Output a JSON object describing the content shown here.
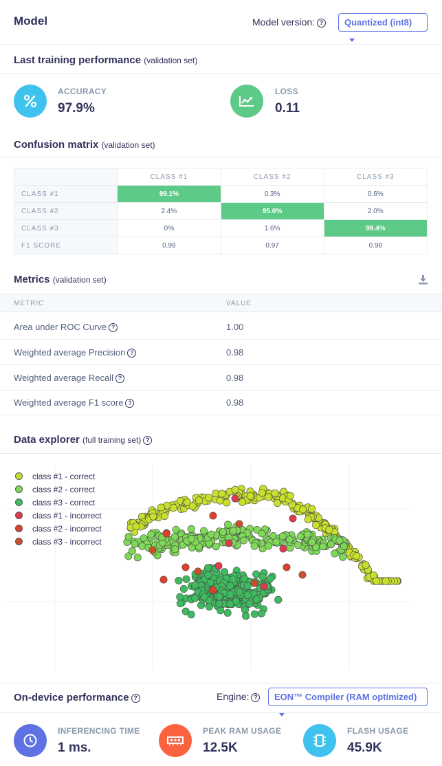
{
  "header": {
    "title": "Model",
    "model_version_label": "Model version:",
    "model_version_value": "Quantized (int8)"
  },
  "training": {
    "title": "Last training performance",
    "subtitle": "(validation set)",
    "accuracy": {
      "label": "ACCURACY",
      "value": "97.9%",
      "icon": "percent-icon",
      "color": "#3fc3ee"
    },
    "loss": {
      "label": "LOSS",
      "value": "0.11",
      "icon": "chart-icon",
      "color": "#5dca88"
    }
  },
  "confusion": {
    "title": "Confusion matrix",
    "subtitle": "(validation set)",
    "columns": [
      "CLASS #1",
      "CLASS #2",
      "CLASS #3"
    ],
    "rows": [
      {
        "label": "CLASS #1",
        "cells": [
          "99.1%",
          "0.3%",
          "0.6%"
        ]
      },
      {
        "label": "CLASS #2",
        "cells": [
          "2.4%",
          "95.6%",
          "2.0%"
        ]
      },
      {
        "label": "CLASS #3",
        "cells": [
          "0%",
          "1.6%",
          "98.4%"
        ]
      },
      {
        "label": "F1 SCORE",
        "cells": [
          "0.99",
          "0.97",
          "0.98"
        ]
      }
    ]
  },
  "metrics": {
    "title": "Metrics",
    "subtitle": "(validation set)",
    "col_metric": "METRIC",
    "col_value": "VALUE",
    "rows": [
      {
        "name": "Area under ROC Curve",
        "value": "1.00"
      },
      {
        "name": "Weighted average Precision",
        "value": "0.98"
      },
      {
        "name": "Weighted average Recall",
        "value": "0.98"
      },
      {
        "name": "Weighted average F1 score",
        "value": "0.98"
      }
    ]
  },
  "explorer": {
    "title": "Data explorer",
    "subtitle": "(full training set)",
    "legend": [
      {
        "label": "class #1 - correct",
        "color": "#c8e02c"
      },
      {
        "label": "class #2 - correct",
        "color": "#7ed957"
      },
      {
        "label": "class #3 - correct",
        "color": "#3dbb5e"
      },
      {
        "label": "class #1 - incorrect",
        "color": "#e03a4e"
      },
      {
        "label": "class #2 - incorrect",
        "color": "#e0402a"
      },
      {
        "label": "class #3 - incorrect",
        "color": "#c9502a"
      }
    ]
  },
  "device": {
    "title": "On-device performance",
    "engine_label": "Engine:",
    "engine_value": "EON™ Compiler (RAM optimized)",
    "inferencing": {
      "label": "INFERENCING TIME",
      "value": "1 ms.",
      "color": "#5e72e4"
    },
    "ram": {
      "label": "PEAK RAM USAGE",
      "value": "12.5K",
      "color": "#fb6340"
    },
    "flash": {
      "label": "FLASH USAGE",
      "value": "45.9K",
      "color": "#3fc3ee"
    }
  }
}
